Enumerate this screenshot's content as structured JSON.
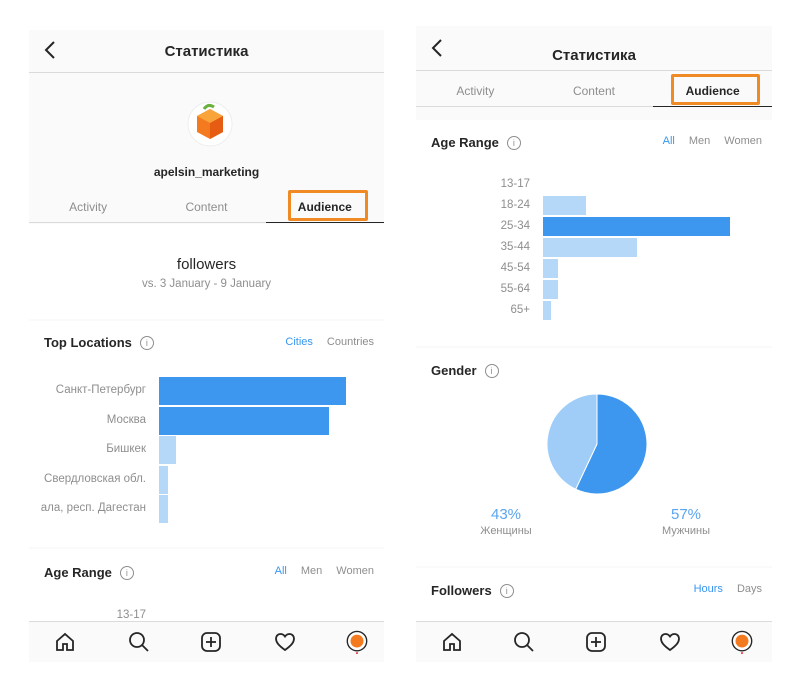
{
  "colors": {
    "accent": "#3897f0",
    "bar_dark": "#3d97ee",
    "bar_light": "#b5d8f9",
    "highlight": "#f08a24"
  },
  "left": {
    "header": {
      "title": "Статистика"
    },
    "profile": {
      "username": "apelsin_marketing",
      "avatar": "orange-avatar-icon"
    },
    "tabs": [
      {
        "label": "Activity"
      },
      {
        "label": "Content"
      },
      {
        "label": "Audience",
        "active": true
      }
    ],
    "followers": {
      "label": "followers",
      "comparison": "vs. 3 January - 9 January"
    },
    "top_locations": {
      "title": "Top Locations",
      "filters": [
        {
          "label": "Cities",
          "active": true
        },
        {
          "label": "Countries"
        }
      ]
    },
    "age_range": {
      "title": "Age Range",
      "filters": [
        {
          "label": "All",
          "active": true
        },
        {
          "label": "Men"
        },
        {
          "label": "Women"
        }
      ],
      "first_label": "13-17"
    },
    "nav": [
      "home-icon",
      "search-icon",
      "add-icon",
      "heart-icon",
      "profile-icon"
    ]
  },
  "right": {
    "header": {
      "title": "Статистика"
    },
    "tabs": [
      {
        "label": "Activity"
      },
      {
        "label": "Content"
      },
      {
        "label": "Audience",
        "active": true
      }
    ],
    "age_range": {
      "title": "Age Range",
      "filters": [
        {
          "label": "All",
          "active": true
        },
        {
          "label": "Men"
        },
        {
          "label": "Women"
        }
      ]
    },
    "gender": {
      "title": "Gender",
      "female": {
        "value": "43%",
        "label": "Женщины"
      },
      "male": {
        "value": "57%",
        "label": "Мужчины"
      }
    },
    "followers_chart": {
      "title": "Followers",
      "filters": [
        {
          "label": "Hours",
          "active": true
        },
        {
          "label": "Days"
        }
      ]
    },
    "nav": [
      "home-icon",
      "search-icon",
      "add-icon",
      "heart-icon",
      "profile-icon"
    ]
  },
  "chart_data": [
    {
      "type": "bar",
      "title": "Top Locations",
      "categories": [
        "Санкт-Петербург",
        "Москва",
        "Бишкек",
        "Свердловская обл.",
        "ала, респ. Дагестан"
      ],
      "values": [
        100,
        91,
        9,
        5,
        5
      ],
      "highlight": [
        true,
        true,
        false,
        false,
        false
      ]
    },
    {
      "type": "bar",
      "title": "Age Range",
      "categories": [
        "13-17",
        "18-24",
        "25-34",
        "35-44",
        "45-54",
        "55-64",
        "65+"
      ],
      "values": [
        0,
        23,
        100,
        50,
        8,
        8,
        4
      ],
      "highlight": [
        false,
        false,
        true,
        false,
        false,
        false,
        false
      ]
    },
    {
      "type": "pie",
      "title": "Gender",
      "categories": [
        "Женщины",
        "Мужчины"
      ],
      "values": [
        43,
        57
      ]
    }
  ]
}
